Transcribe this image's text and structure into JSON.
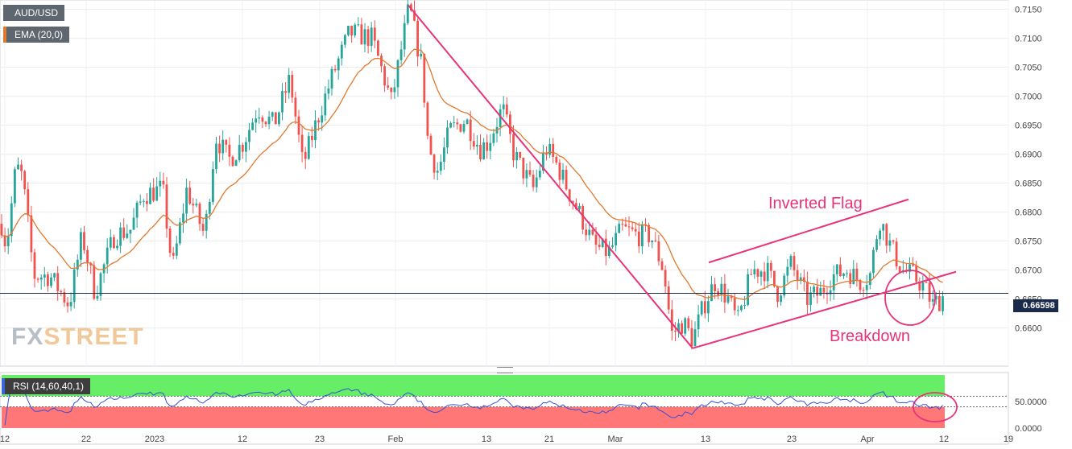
{
  "instrument": "AUD/USD",
  "indicator_ema": "EMA (20,0)",
  "indicator_rsi": "RSI (14,60,40,1)",
  "last_price": "0.66598",
  "watermark": {
    "part1": "FX",
    "part2": "STREET"
  },
  "annotations": {
    "flag": "Inverted Flag",
    "breakdown": "Breakdown"
  },
  "colors": {
    "up": "#26a69a",
    "down": "#ef5350",
    "ema": "#e07a2e",
    "trend": "#e8337a",
    "rsi_line": "#3a4ed6",
    "rsi_upper_zone": "#66ee66",
    "rsi_lower_zone": "#ff7777",
    "price_line": "#1a2a4a"
  },
  "chart_data": [
    {
      "type": "candlestick",
      "title": "AUD/USD",
      "timeframe_label_ticks": [
        "12",
        "22",
        "2023",
        "12",
        "23",
        "Feb",
        "13",
        "21",
        "Mar",
        "13",
        "23",
        "Apr",
        "12",
        "19"
      ],
      "y_ticks": [
        "0.7150",
        "0.7100",
        "0.7050",
        "0.7000",
        "0.6950",
        "0.6900",
        "0.6850",
        "0.6800",
        "0.6750",
        "0.6700",
        "0.6650",
        "0.6600"
      ],
      "ylim": [
        0.6555,
        0.7155
      ],
      "grid": true,
      "current_price": 0.66598,
      "key_points": [
        {
          "label": "start",
          "close": 0.678
        },
        {
          "label": "mid-Dec swing high",
          "close": 0.689
        },
        {
          "label": "late-Dec low",
          "close": 0.663
        },
        {
          "label": "Feb 2 high",
          "close": 0.7157
        },
        {
          "label": "Mar 10 low",
          "close": 0.6565
        },
        {
          "label": "Apr 4 high",
          "close": 0.6795
        },
        {
          "label": "last",
          "close": 0.66598
        }
      ],
      "ema_period": 20,
      "trendlines": [
        {
          "name": "downtrend",
          "from": 0.7157,
          "to": 0.6565
        },
        {
          "name": "flag-support",
          "from": 0.6565,
          "to": 0.6697
        },
        {
          "name": "flag-resistance",
          "from": 0.6713,
          "to": 0.6822
        }
      ]
    },
    {
      "type": "line",
      "title": "RSI (14,60,40,1)",
      "y_ticks": [
        "50.0000",
        "0.0000"
      ],
      "upper_band": 60,
      "lower_band": 40
    }
  ]
}
